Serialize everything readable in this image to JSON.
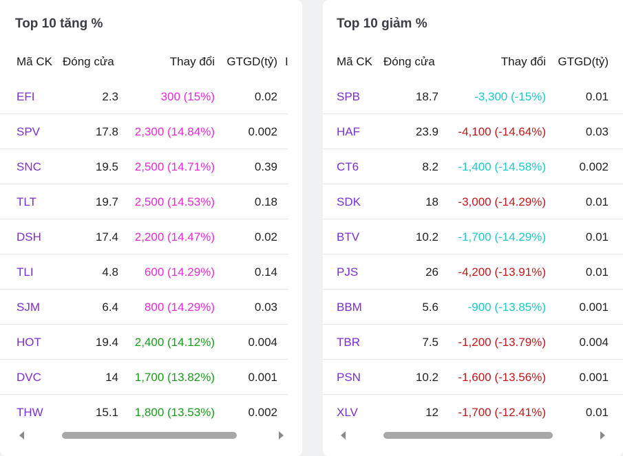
{
  "gainers": {
    "title": "Top 10 tăng %",
    "headers": {
      "symbol": "Mã CK",
      "close": "Đóng cửa",
      "change": "Thay đổi",
      "value": "GTGD(tỷ)",
      "extra": "I"
    },
    "rows": [
      {
        "symbol": "EFI",
        "close": "2.3",
        "change": "300 (15%)",
        "tone": "pos-ceil",
        "value": "0.02"
      },
      {
        "symbol": "SPV",
        "close": "17.8",
        "change": "2,300 (14.84%)",
        "tone": "pos-ceil",
        "value": "0.002"
      },
      {
        "symbol": "SNC",
        "close": "19.5",
        "change": "2,500 (14.71%)",
        "tone": "pos-ceil",
        "value": "0.39"
      },
      {
        "symbol": "TLT",
        "close": "19.7",
        "change": "2,500 (14.53%)",
        "tone": "pos-ceil",
        "value": "0.18"
      },
      {
        "symbol": "DSH",
        "close": "17.4",
        "change": "2,200 (14.47%)",
        "tone": "pos-ceil",
        "value": "0.02"
      },
      {
        "symbol": "TLI",
        "close": "4.8",
        "change": "600 (14.29%)",
        "tone": "pos-ceil",
        "value": "0.14"
      },
      {
        "symbol": "SJM",
        "close": "6.4",
        "change": "800 (14.29%)",
        "tone": "pos-ceil",
        "value": "0.03"
      },
      {
        "symbol": "HOT",
        "close": "19.4",
        "change": "2,400 (14.12%)",
        "tone": "pos",
        "value": "0.004"
      },
      {
        "symbol": "DVC",
        "close": "14",
        "change": "1,700 (13.82%)",
        "tone": "pos",
        "value": "0.001"
      },
      {
        "symbol": "THW",
        "close": "15.1",
        "change": "1,800 (13.53%)",
        "tone": "pos",
        "value": "0.002"
      }
    ]
  },
  "losers": {
    "title": "Top 10 giảm %",
    "headers": {
      "symbol": "Mã CK",
      "close": "Đóng cửa",
      "change": "Thay đổi",
      "value": "GTGD(tỷ)"
    },
    "rows": [
      {
        "symbol": "SPB",
        "close": "18.7",
        "change": "-3,300 (-15%)",
        "tone": "neg-floor",
        "value": "0.01"
      },
      {
        "symbol": "HAF",
        "close": "23.9",
        "change": "-4,100 (-14.64%)",
        "tone": "neg",
        "value": "0.03"
      },
      {
        "symbol": "CT6",
        "close": "8.2",
        "change": "-1,400 (-14.58%)",
        "tone": "neg-floor",
        "value": "0.002"
      },
      {
        "symbol": "SDK",
        "close": "18",
        "change": "-3,000 (-14.29%)",
        "tone": "neg",
        "value": "0.01"
      },
      {
        "symbol": "BTV",
        "close": "10.2",
        "change": "-1,700 (-14.29%)",
        "tone": "neg-floor",
        "value": "0.01"
      },
      {
        "symbol": "PJS",
        "close": "26",
        "change": "-4,200 (-13.91%)",
        "tone": "neg",
        "value": "0.01"
      },
      {
        "symbol": "BBM",
        "close": "5.6",
        "change": "-900 (-13.85%)",
        "tone": "neg-floor",
        "value": "0.001"
      },
      {
        "symbol": "TBR",
        "close": "7.5",
        "change": "-1,200 (-13.79%)",
        "tone": "neg",
        "value": "0.004"
      },
      {
        "symbol": "PSN",
        "close": "10.2",
        "change": "-1,600 (-13.56%)",
        "tone": "neg",
        "value": "0.001"
      },
      {
        "symbol": "XLV",
        "close": "12",
        "change": "-1,700 (-12.41%)",
        "tone": "neg",
        "value": "0.01"
      }
    ]
  },
  "colors": {
    "ceiling": "#e62ad6",
    "up": "#1a9a1a",
    "floor": "#1ec8c8",
    "down": "#c01818",
    "symbol": "#7a2fd0"
  },
  "icons": {
    "scroll_left": "scroll-left-arrow-icon",
    "scroll_right": "scroll-right-arrow-icon"
  }
}
